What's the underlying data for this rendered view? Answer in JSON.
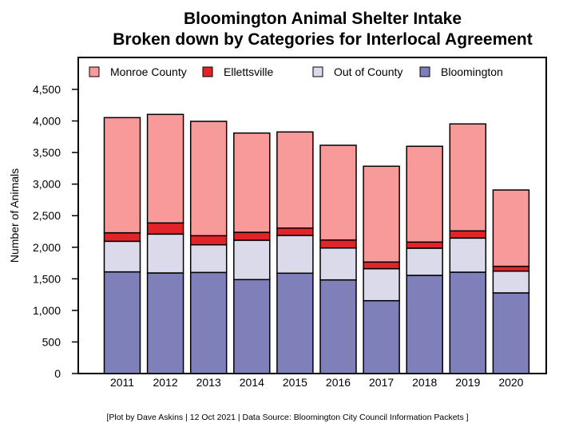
{
  "chart_data": {
    "type": "bar",
    "stacked": true,
    "title": [
      "Bloomington Animal Shelter Intake",
      "Broken down by Categories for Interlocal Agreement"
    ],
    "xlabel": "",
    "ylabel": "Number of Animals",
    "ylim": [
      0,
      4500
    ],
    "yticks": [
      "0",
      "500",
      "1,000",
      "1,500",
      "2,000",
      "2,500",
      "3,000",
      "3,500",
      "4,000",
      "4,500"
    ],
    "ytick_values": [
      0,
      500,
      1000,
      1500,
      2000,
      2500,
      3000,
      3500,
      4000,
      4500
    ],
    "grid": false,
    "legend_position": "top",
    "categories": [
      "2011",
      "2012",
      "2013",
      "2014",
      "2015",
      "2016",
      "2017",
      "2018",
      "2019",
      "2020"
    ],
    "series": [
      {
        "name": "Bloomington",
        "color": "#7f7fba",
        "values": [
          1610,
          1593,
          1601,
          1488,
          1589,
          1483,
          1154,
          1555,
          1605,
          1277
        ]
      },
      {
        "name": "Out of County",
        "color": "#dadaea",
        "values": [
          484,
          615,
          438,
          623,
          598,
          505,
          506,
          430,
          540,
          345
        ]
      },
      {
        "name": "Ellettsville",
        "color": "#e0242a",
        "values": [
          135,
          177,
          144,
          126,
          117,
          127,
          106,
          97,
          114,
          76
        ]
      },
      {
        "name": "Monroe County",
        "color": "#f99a9a",
        "values": [
          1824,
          1719,
          1811,
          1572,
          1522,
          1500,
          1517,
          1517,
          1694,
          1209
        ]
      }
    ],
    "legend_order": [
      "Monroe County",
      "Ellettsville",
      "Out of County",
      "Bloomington"
    ],
    "footer": "[Plot by Dave Askins | 12 Oct 2021 | Data Source: Bloomington City Council Information Packets ]"
  }
}
